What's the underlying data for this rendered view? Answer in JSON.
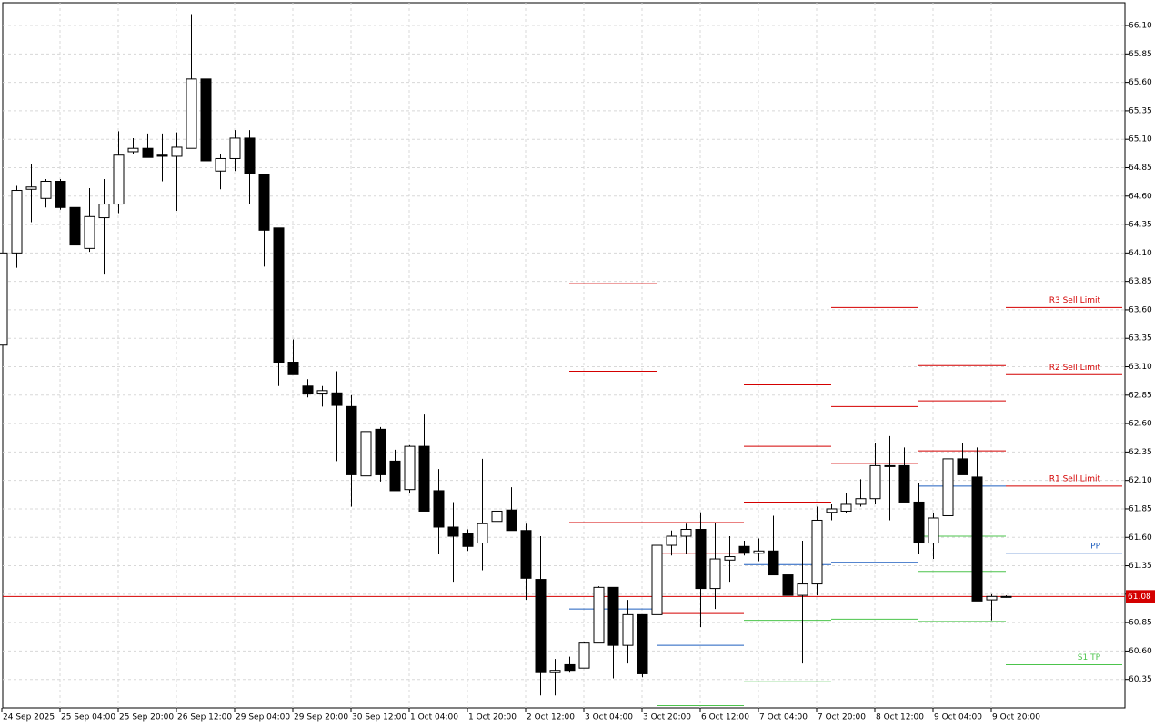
{
  "chart_data": {
    "type": "candlestick",
    "categories": [
      "24 Sep 2025",
      null,
      null,
      null,
      "25 Sep 04:00",
      null,
      null,
      null,
      "25 Sep 20:00",
      null,
      null,
      null,
      "26 Sep 12:00",
      null,
      null,
      null,
      "29 Sep 04:00",
      null,
      null,
      null,
      "29 Sep 20:00",
      null,
      null,
      null,
      "30 Sep 12:00",
      null,
      null,
      null,
      "1 Oct 04:00",
      null,
      null,
      null,
      "1 Oct 20:00",
      null,
      null,
      null,
      "2 Oct 12:00",
      null,
      null,
      null,
      "3 Oct 04:00",
      null,
      null,
      null,
      "3 Oct 20:00",
      null,
      null,
      null,
      "6 Oct 12:00",
      null,
      null,
      null,
      "7 Oct 04:00",
      null,
      null,
      null,
      "7 Oct 20:00",
      null,
      null,
      null,
      "8 Oct 12:00",
      null,
      null,
      null,
      "9 Oct 04:00",
      null,
      null,
      null,
      "9 Oct 20:00",
      null
    ],
    "open": [
      63.29,
      64.1,
      64.66,
      64.58,
      64.73,
      64.5,
      64.14,
      64.41,
      64.53,
      64.99,
      65.02,
      64.96,
      64.95,
      65.02,
      65.63,
      64.82,
      64.93,
      65.11,
      64.79,
      64.32,
      63.14,
      62.93,
      62.86,
      62.87,
      62.75,
      62.14,
      62.55,
      62.27,
      62.02,
      62.4,
      62.01,
      61.69,
      61.63,
      61.55,
      61.74,
      61.84,
      61.66,
      61.23,
      60.41,
      60.48,
      60.45,
      60.67,
      61.16,
      60.65,
      60.92,
      60.92,
      61.53,
      61.61,
      61.67,
      61.15,
      61.4,
      61.52,
      61.46,
      61.48,
      61.27,
      61.09,
      61.19,
      61.82,
      61.83,
      61.89,
      61.94,
      62.23,
      62.23,
      61.91,
      61.55,
      61.79,
      62.29,
      62.13,
      61.05,
      61.08
    ],
    "high": [
      64.1,
      64.69,
      64.88,
      64.75,
      64.75,
      64.53,
      64.67,
      64.75,
      65.17,
      65.11,
      65.15,
      65.15,
      65.16,
      66.2,
      65.67,
      64.97,
      65.18,
      65.18,
      64.79,
      64.32,
      63.34,
      62.99,
      62.93,
      63.06,
      62.85,
      62.82,
      62.57,
      62.37,
      62.41,
      62.68,
      62.2,
      61.91,
      61.67,
      62.29,
      62.05,
      62.04,
      61.72,
      61.61,
      60.53,
      60.55,
      60.68,
      61.17,
      61.16,
      61.05,
      60.92,
      61.55,
      61.66,
      61.72,
      61.82,
      61.73,
      61.61,
      61.57,
      61.59,
      61.79,
      61.27,
      61.57,
      61.87,
      61.89,
      61.99,
      62.11,
      62.43,
      62.49,
      62.39,
      62.08,
      61.81,
      62.39,
      62.43,
      62.39,
      61.1,
      61.09
    ],
    "low": [
      63.29,
      63.97,
      64.37,
      64.5,
      64.48,
      64.1,
      64.11,
      63.91,
      64.45,
      64.97,
      64.94,
      64.73,
      64.47,
      65.02,
      64.85,
      64.66,
      64.82,
      64.53,
      63.98,
      62.93,
      63.03,
      62.83,
      62.75,
      62.27,
      61.87,
      62.05,
      62.09,
      62.01,
      61.99,
      61.83,
      61.45,
      61.21,
      61.48,
      61.31,
      61.69,
      61.66,
      61.05,
      60.21,
      60.21,
      60.41,
      60.45,
      60.67,
      60.36,
      60.49,
      60.37,
      60.91,
      61.44,
      61.45,
      60.81,
      60.97,
      61.21,
      61.44,
      61.39,
      61.27,
      61.05,
      60.49,
      61.09,
      61.75,
      61.81,
      61.87,
      61.89,
      61.75,
      61.91,
      61.45,
      61.41,
      61.79,
      62.15,
      61.04,
      60.87,
      61.07
    ],
    "close": [
      64.1,
      64.65,
      64.68,
      64.73,
      64.5,
      64.17,
      64.42,
      64.53,
      64.96,
      65.02,
      64.94,
      64.95,
      65.03,
      65.63,
      64.91,
      64.93,
      65.11,
      64.8,
      64.3,
      63.14,
      63.03,
      62.86,
      62.89,
      62.76,
      62.15,
      62.53,
      62.15,
      62.01,
      62.4,
      61.83,
      61.69,
      61.61,
      61.52,
      61.72,
      61.83,
      61.66,
      61.24,
      60.41,
      60.43,
      60.43,
      60.67,
      61.16,
      60.65,
      60.92,
      60.4,
      61.53,
      61.61,
      61.67,
      61.15,
      61.41,
      61.43,
      61.46,
      61.48,
      61.27,
      61.09,
      61.19,
      61.75,
      61.85,
      61.89,
      61.94,
      62.23,
      62.23,
      61.91,
      61.55,
      61.77,
      62.29,
      62.15,
      61.04,
      61.08,
      61.08
    ],
    "up_color": "#ffffff",
    "down_color": "#000000",
    "ylim": [
      60.1,
      66.3
    ],
    "yticks": [
      {
        "value": 66.1,
        "label": "66.10"
      },
      65.85,
      {
        "value": 65.6,
        "label": "65.60"
      },
      65.35,
      {
        "value": 65.1,
        "label": "65.10"
      },
      64.85,
      {
        "value": 64.6,
        "label": "64.60"
      },
      64.35,
      {
        "value": 64.1,
        "label": "64.10"
      },
      63.85,
      {
        "value": 63.6,
        "label": "63.60"
      },
      63.35,
      {
        "value": 63.1,
        "label": "63.10"
      },
      62.85,
      {
        "value": 62.6,
        "label": "62.60"
      },
      62.35,
      {
        "value": 62.1,
        "label": "62.10"
      },
      61.85,
      {
        "value": 61.6,
        "label": "61.60"
      },
      61.35,
      {
        "value": 61.1,
        "label": "61.10"
      },
      60.85,
      {
        "value": 60.6,
        "label": "60.60"
      },
      60.35
    ],
    "grid": true,
    "last_price": 61.08,
    "last_price_color": "#d40000",
    "levels": [
      {
        "from": 39,
        "to": 45,
        "value": 63.83,
        "color": "#d40000"
      },
      {
        "from": 39,
        "to": 45,
        "value": 63.06,
        "color": "#d40000"
      },
      {
        "from": 39,
        "to": 45,
        "value": 61.73,
        "color": "#d40000"
      },
      {
        "from": 39,
        "to": 45,
        "value": 60.97,
        "color": "#1f5fbf"
      },
      {
        "from": 45,
        "to": 51,
        "value": 61.73,
        "color": "#d40000"
      },
      {
        "from": 45,
        "to": 51,
        "value": 61.46,
        "color": "#d40000"
      },
      {
        "from": 45,
        "to": 51,
        "value": 60.93,
        "color": "#d40000"
      },
      {
        "from": 45,
        "to": 51,
        "value": 60.65,
        "color": "#1f5fbf"
      },
      {
        "from": 45,
        "to": 51,
        "value": 60.12,
        "color": "#4cc44c"
      },
      {
        "from": 51,
        "to": 57,
        "value": 62.94,
        "color": "#d40000"
      },
      {
        "from": 51,
        "to": 57,
        "value": 62.4,
        "color": "#d40000"
      },
      {
        "from": 51,
        "to": 57,
        "value": 61.91,
        "color": "#d40000"
      },
      {
        "from": 51,
        "to": 57,
        "value": 61.36,
        "color": "#1f5fbf"
      },
      {
        "from": 51,
        "to": 57,
        "value": 60.87,
        "color": "#4cc44c"
      },
      {
        "from": 51,
        "to": 57,
        "value": 60.33,
        "color": "#4cc44c"
      },
      {
        "from": 57,
        "to": 63,
        "value": 63.62,
        "color": "#d40000"
      },
      {
        "from": 57,
        "to": 63,
        "value": 62.75,
        "color": "#d40000"
      },
      {
        "from": 57,
        "to": 63,
        "value": 62.25,
        "color": "#d40000"
      },
      {
        "from": 57,
        "to": 63,
        "value": 61.38,
        "color": "#1f5fbf"
      },
      {
        "from": 57,
        "to": 63,
        "value": 60.88,
        "color": "#4cc44c"
      },
      {
        "from": 63,
        "to": 69,
        "value": 63.11,
        "color": "#d40000"
      },
      {
        "from": 63,
        "to": 69,
        "value": 62.8,
        "color": "#d40000"
      },
      {
        "from": 63,
        "to": 69,
        "value": 62.36,
        "color": "#d40000"
      },
      {
        "from": 63,
        "to": 69,
        "value": 62.05,
        "color": "#1f5fbf"
      },
      {
        "from": 63,
        "to": 69,
        "value": 61.61,
        "color": "#4cc44c"
      },
      {
        "from": 63,
        "to": 69,
        "value": 61.3,
        "color": "#4cc44c"
      },
      {
        "from": 63,
        "to": 69,
        "value": 60.86,
        "color": "#4cc44c"
      },
      {
        "from": 69,
        "to": 77,
        "value": 63.62,
        "color": "#d40000",
        "label": "R3 Sell Limit"
      },
      {
        "from": 69,
        "to": 77,
        "value": 63.03,
        "color": "#d40000",
        "label": "R2 Sell Limit"
      },
      {
        "from": 69,
        "to": 77,
        "value": 62.05,
        "color": "#d40000",
        "label": "R1 Sell Limit"
      },
      {
        "from": 69,
        "to": 77,
        "value": 61.46,
        "color": "#1f5fbf",
        "label": "PP"
      },
      {
        "from": 69,
        "to": 77,
        "value": 60.48,
        "color": "#4cc44c",
        "label": "S1 TP"
      }
    ]
  }
}
